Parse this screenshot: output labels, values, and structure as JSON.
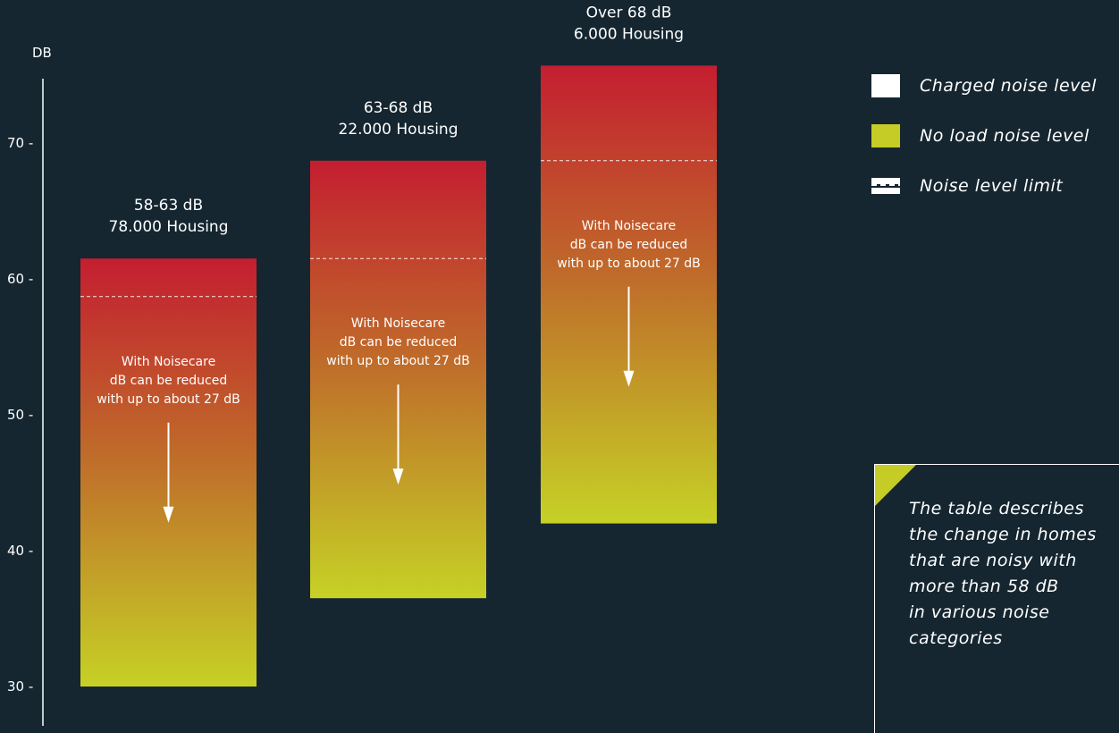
{
  "chart_data": {
    "type": "bar",
    "ylabel": "DB",
    "ylim": [
      27,
      76
    ],
    "yticks": [
      30,
      40,
      50,
      60,
      70
    ],
    "series": [
      {
        "label_range": "58-63 dB",
        "label_housing": "78.000 Housing",
        "charged_level": 61.5,
        "no_load_level": 30,
        "limit_level": 58.7,
        "reduction_note": [
          "With Noisecare",
          "dB can be reduced",
          "with up to about 27 dB"
        ]
      },
      {
        "label_range": "63-68 dB",
        "label_housing": "22.000 Housing",
        "charged_level": 68.7,
        "no_load_level": 36.5,
        "limit_level": 61.5,
        "reduction_note": [
          "With Noisecare",
          "dB can be reduced",
          "with up to about 27 dB"
        ]
      },
      {
        "label_range": "Over 68 dB",
        "label_housing": "6.000 Housing",
        "charged_level": 75.7,
        "no_load_level": 42,
        "limit_level": 68.7,
        "reduction_note": [
          "With Noisecare",
          "dB can be reduced",
          "with up to about 27 dB"
        ]
      }
    ],
    "colors": {
      "top": "#c41e30",
      "middle": "#bf6a2a",
      "bottom": "#c6d126",
      "background": "#152630"
    }
  },
  "legend": {
    "charged": "Charged noise level",
    "no_load": "No load noise level",
    "limit": "Noise level limit"
  },
  "note": {
    "text": "The table describes\nthe change in homes\nthat are noisy with\nmore than 58 dB\nin various noise\ncategories"
  }
}
